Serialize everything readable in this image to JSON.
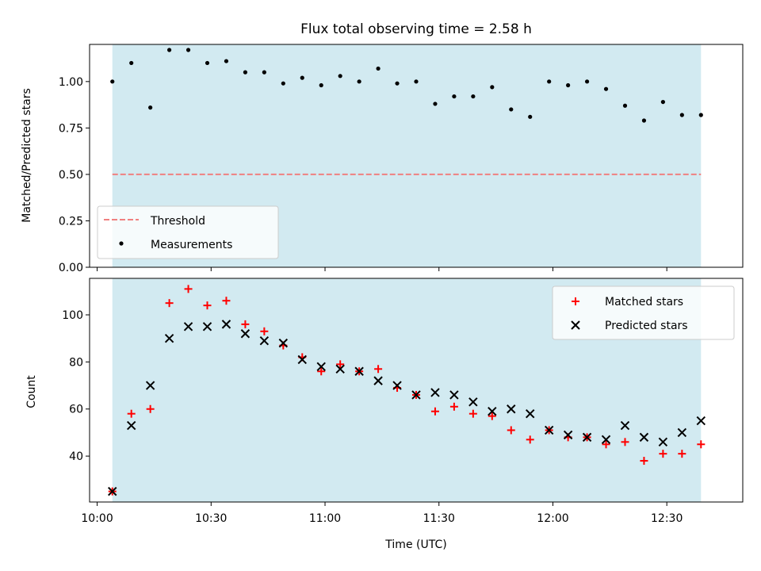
{
  "chart_data": [
    {
      "type": "scatter",
      "title": "Flux total observing time = 2.58 h",
      "xlabel": "",
      "ylabel": "Matched/Predicted stars",
      "ylim": [
        0.0,
        1.2
      ],
      "yticks": [
        0.0,
        0.25,
        0.5,
        0.75,
        1.0
      ],
      "ytick_labels": [
        "0.00",
        "0.25",
        "0.50",
        "0.75",
        "1.00"
      ],
      "x_range": [
        "10:00",
        "12:40"
      ],
      "x_time_range": [
        "09:58",
        "12:50"
      ],
      "shaded_span": [
        "10:04",
        "12:39"
      ],
      "shaded_color": "#add8e6",
      "legend_position": "lower-left",
      "threshold": {
        "name": "Threshold",
        "value": 0.5,
        "color": "#f08080"
      },
      "series": [
        {
          "name": "Measurements",
          "color": "#000000",
          "x": [
            "10:04",
            "10:09",
            "10:14",
            "10:19",
            "10:24",
            "10:29",
            "10:34",
            "10:39",
            "10:44",
            "10:49",
            "10:54",
            "10:59",
            "11:04",
            "11:09",
            "11:14",
            "11:19",
            "11:24",
            "11:29",
            "11:34",
            "11:39",
            "11:44",
            "11:49",
            "11:54",
            "11:59",
            "12:04",
            "12:09",
            "12:14",
            "12:19",
            "12:24",
            "12:29",
            "12:34",
            "12:39"
          ],
          "values": [
            1.0,
            1.1,
            0.86,
            1.17,
            1.17,
            1.1,
            1.11,
            1.05,
            1.05,
            0.99,
            1.02,
            0.98,
            1.03,
            1.0,
            1.07,
            0.99,
            1.0,
            0.88,
            0.92,
            0.92,
            0.97,
            0.85,
            0.81,
            1.0,
            0.98,
            1.0,
            0.96,
            0.87,
            0.79,
            0.89,
            0.82,
            0.82
          ]
        }
      ]
    },
    {
      "type": "scatter",
      "title": "",
      "xlabel": "Time (UTC)",
      "ylabel": "Count",
      "ylim": [
        20.5,
        115.5
      ],
      "yticks": [
        40,
        60,
        80,
        100
      ],
      "ytick_labels": [
        "40",
        "60",
        "80",
        "100"
      ],
      "xticks": [
        "10:00",
        "10:30",
        "11:00",
        "11:30",
        "12:00",
        "12:30"
      ],
      "xtick_labels": [
        "10:00",
        "10:30",
        "11:00",
        "11:30",
        "12:00",
        "12:30"
      ],
      "x_time_range": [
        "09:58",
        "12:50"
      ],
      "shaded_span": [
        "10:04",
        "12:39"
      ],
      "shaded_color": "#add8e6",
      "legend_position": "top-right",
      "series": [
        {
          "name": "Matched stars",
          "marker": "plus",
          "color": "#ff0000",
          "x": [
            "10:04",
            "10:09",
            "10:14",
            "10:19",
            "10:24",
            "10:29",
            "10:34",
            "10:39",
            "10:44",
            "10:49",
            "10:54",
            "10:59",
            "11:04",
            "11:09",
            "11:14",
            "11:19",
            "11:24",
            "11:29",
            "11:34",
            "11:39",
            "11:44",
            "11:49",
            "11:54",
            "11:59",
            "12:04",
            "12:09",
            "12:14",
            "12:19",
            "12:24",
            "12:29",
            "12:34",
            "12:39"
          ],
          "values": [
            25,
            58,
            60,
            105,
            111,
            104,
            106,
            96,
            93,
            87,
            82,
            76,
            79,
            76,
            77,
            69,
            66,
            59,
            61,
            58,
            57,
            51,
            47,
            51,
            48,
            48,
            45,
            46,
            38,
            41,
            41,
            45
          ]
        },
        {
          "name": "Predicted stars",
          "marker": "x",
          "color": "#000000",
          "x": [
            "10:04",
            "10:09",
            "10:14",
            "10:19",
            "10:24",
            "10:29",
            "10:34",
            "10:39",
            "10:44",
            "10:49",
            "10:54",
            "10:59",
            "11:04",
            "11:09",
            "11:14",
            "11:19",
            "11:24",
            "11:29",
            "11:34",
            "11:39",
            "11:44",
            "11:49",
            "11:54",
            "11:59",
            "12:04",
            "12:09",
            "12:14",
            "12:19",
            "12:24",
            "12:29",
            "12:34",
            "12:39"
          ],
          "values": [
            25,
            53,
            70,
            90,
            95,
            95,
            96,
            92,
            89,
            88,
            81,
            78,
            77,
            76,
            72,
            70,
            66,
            67,
            66,
            63,
            59,
            60,
            58,
            51,
            49,
            48,
            47,
            53,
            48,
            46,
            50,
            55
          ]
        }
      ]
    }
  ]
}
